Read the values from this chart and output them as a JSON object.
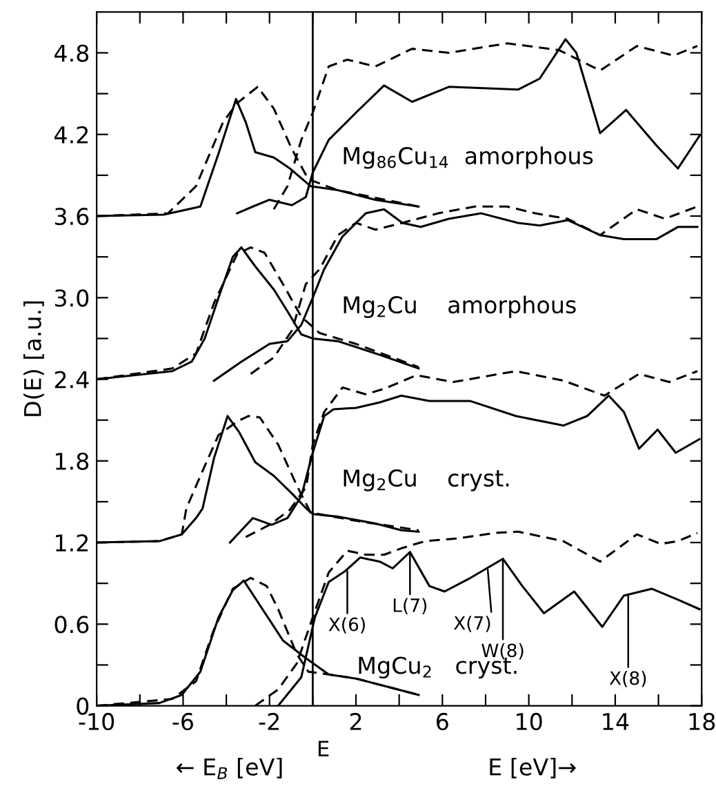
{
  "chart_data": {
    "type": "line",
    "ylabel": "D(E) [a.u.]",
    "xlabel": "E [eV]→",
    "xlim": [
      -10,
      18
    ],
    "ylim": [
      0,
      5.1
    ],
    "xticks": [
      -10,
      {
        "value": -8,
        "label": null
      },
      -6,
      {
        "value": -4,
        "label": null
      },
      -2,
      {
        "value": 0,
        "label": null
      },
      2,
      {
        "value": 4,
        "label": null
      },
      6,
      {
        "value": 8,
        "label": null
      },
      10,
      {
        "value": 12,
        "label": null
      },
      14,
      {
        "value": 16,
        "label": null
      },
      18
    ],
    "yticks": [
      0,
      {
        "value": 0.3,
        "label": null
      },
      0.6,
      {
        "value": 0.9,
        "label": null
      },
      1.2,
      {
        "value": 1.5,
        "label": null
      },
      1.8,
      {
        "value": 2.1,
        "label": null
      },
      2.4,
      {
        "value": 2.7,
        "label": null
      },
      {
        "value": 3.0,
        "label": "3.0"
      },
      {
        "value": 3.3,
        "label": null
      },
      3.6,
      {
        "value": 3.9,
        "label": null
      },
      4.2,
      {
        "value": 4.5,
        "label": null
      },
      4.8
    ],
    "grid": false,
    "legend": false,
    "marker": "none",
    "ref_lines": [
      {
        "axis": "x",
        "value": 0,
        "label": "E",
        "color": "#000000",
        "line_style": "solid"
      }
    ],
    "annotations": [
      "← E$_{B}$ [eV]",
      {
        "text": "X(6)",
        "x": 1.6,
        "y": 0.99
      },
      {
        "text": "L(7)",
        "x": 4.5,
        "y": 1.13
      },
      {
        "text": "X(7)",
        "x": 8.1,
        "y": 1.0
      },
      {
        "text": "W(8)",
        "x": 8.8,
        "y": 1.08
      },
      {
        "text": "X(8)",
        "x": 14.6,
        "y": 0.82
      }
    ],
    "series": [
      {
        "name": "Mg$_{86}$Cu$_{14}$  amorphous",
        "color": "#000000",
        "line_style": "solid",
        "x": [
          -3.5,
          -2.77,
          -2.0,
          -0.96,
          -0.32,
          0,
          0.74,
          2.0,
          3.3,
          4.6,
          6.3,
          9.5,
          10.5,
          11.7,
          12.2,
          13.3,
          14.5,
          15.9,
          16.9,
          17.9
        ],
        "values": [
          3.62,
          3.67,
          3.72,
          3.68,
          3.74,
          3.92,
          4.16,
          4.36,
          4.56,
          4.44,
          4.55,
          4.53,
          4.61,
          4.9,
          4.8,
          4.21,
          4.38,
          4.12,
          3.95,
          4.19
        ]
      },
      {
        "color": "#000000",
        "line_style": "dashed",
        "x": [
          -1.8,
          -1.17,
          -0.53,
          0,
          0.74,
          1.6,
          2.9,
          4.6,
          6.3,
          9.0,
          11.4,
          13.3,
          15.0,
          16.7,
          17.8
        ],
        "values": [
          3.65,
          3.82,
          4.16,
          4.36,
          4.7,
          4.75,
          4.7,
          4.83,
          4.8,
          4.87,
          4.82,
          4.67,
          4.85,
          4.78,
          4.85
        ]
      },
      {
        "color": "#000000",
        "line_style": "solid",
        "x": [
          -10,
          -6.9,
          -5.2,
          -4.36,
          -3.55,
          -3.1,
          -2.66,
          -1.8,
          -1.06,
          -0.1,
          1.17,
          2.9,
          4.9
        ],
        "values": [
          3.6,
          3.61,
          3.67,
          4.06,
          4.46,
          4.29,
          4.07,
          4.03,
          3.95,
          3.82,
          3.79,
          3.72,
          3.67
        ]
      },
      {
        "color": "#000000",
        "line_style": "dashed",
        "x": [
          -10,
          -6.7,
          -5.4,
          -4.15,
          -3.5,
          -2.55,
          -1.8,
          -0.96,
          -0.2,
          1.17,
          4.9
        ],
        "values": [
          3.6,
          3.62,
          3.82,
          4.29,
          4.43,
          4.55,
          4.39,
          4.09,
          3.87,
          3.79,
          3.67
        ]
      },
      {
        "name": "Mg$_{2}$Cu    amorphous",
        "color": "#000000",
        "line_style": "solid",
        "x": [
          -4.57,
          -3.3,
          -2.0,
          -1.17,
          -0.53,
          0,
          0.53,
          1.38,
          2.45,
          3.3,
          4.15,
          5.0,
          6.3,
          7.8,
          9.5,
          10.5,
          11.8,
          13.3,
          14.4,
          15.9,
          16.9,
          17.8
        ],
        "values": [
          2.39,
          2.53,
          2.66,
          2.68,
          2.8,
          3.0,
          3.21,
          3.45,
          3.62,
          3.65,
          3.55,
          3.52,
          3.58,
          3.62,
          3.55,
          3.53,
          3.57,
          3.46,
          3.43,
          3.43,
          3.52,
          3.52
        ]
      },
      {
        "color": "#000000",
        "line_style": "dashed",
        "x": [
          -2.87,
          -1.8,
          -0.96,
          -0.32,
          0.32,
          1.17,
          2.0,
          2.9,
          4.15,
          5.8,
          7.5,
          9.0,
          10.3,
          11.8,
          13.3,
          15.0,
          16.3,
          17.8
        ],
        "values": [
          2.44,
          2.56,
          2.76,
          3.1,
          3.21,
          3.46,
          3.55,
          3.5,
          3.55,
          3.62,
          3.67,
          3.67,
          3.62,
          3.58,
          3.46,
          3.65,
          3.58,
          3.67
        ]
      },
      {
        "color": "#000000",
        "line_style": "solid",
        "x": [
          -10,
          -6.5,
          -5.6,
          -5.0,
          -4.36,
          -3.7,
          -3.3,
          -2.66,
          -1.8,
          -1.17,
          -0.53,
          0,
          1.17,
          3.1,
          4.9
        ],
        "values": [
          2.4,
          2.46,
          2.53,
          2.7,
          3.0,
          3.3,
          3.37,
          3.23,
          3.06,
          2.9,
          2.73,
          2.7,
          2.68,
          2.58,
          2.48
        ]
      },
      {
        "color": "#000000",
        "line_style": "dashed",
        "x": [
          -10,
          -6.5,
          -5.4,
          -4.57,
          -3.5,
          -2.87,
          -2.23,
          -1.38,
          -0.53,
          0.32,
          2.0,
          4.9
        ],
        "values": [
          2.4,
          2.48,
          2.59,
          2.96,
          3.32,
          3.37,
          3.33,
          3.1,
          2.86,
          2.74,
          2.66,
          2.49
        ]
      },
      {
        "name": "Mg$_{2}$Cu    cryst.",
        "color": "#000000",
        "line_style": "solid",
        "x": [
          -3.83,
          -2.77,
          -1.9,
          -1.17,
          -0.53,
          0,
          0.53,
          0.96,
          2.0,
          3.1,
          4.1,
          5.4,
          7.3,
          9.4,
          11.6,
          12.7,
          13.7,
          14.4,
          15.1,
          15.96,
          16.8,
          17.9
        ],
        "values": [
          1.2,
          1.38,
          1.33,
          1.38,
          1.54,
          1.86,
          2.13,
          2.18,
          2.19,
          2.23,
          2.28,
          2.24,
          2.24,
          2.13,
          2.06,
          2.13,
          2.28,
          2.16,
          1.89,
          2.03,
          1.86,
          1.96
        ]
      },
      {
        "color": "#000000",
        "line_style": "dashed",
        "x": [
          -3.1,
          -2.0,
          -1.06,
          -0.3,
          0,
          0.53,
          1.38,
          2.45,
          3.3,
          4.8,
          6.5,
          9.4,
          11.6,
          13.5,
          15.1,
          16.5,
          17.8
        ],
        "values": [
          1.24,
          1.33,
          1.44,
          1.61,
          1.92,
          2.16,
          2.34,
          2.29,
          2.33,
          2.43,
          2.38,
          2.46,
          2.39,
          2.28,
          2.44,
          2.38,
          2.46
        ]
      },
      {
        "color": "#000000",
        "line_style": "solid",
        "x": [
          -10,
          -7.1,
          -6.06,
          -5.4,
          -5.1,
          -4.57,
          -3.94,
          -3.4,
          -2.66,
          -1.8,
          -0.96,
          -0.3,
          0,
          1.17,
          2.9,
          4.1,
          4.9
        ],
        "values": [
          1.2,
          1.21,
          1.26,
          1.38,
          1.45,
          1.82,
          2.13,
          2.01,
          1.79,
          1.69,
          1.56,
          1.45,
          1.41,
          1.39,
          1.34,
          1.29,
          1.28
        ]
      },
      {
        "color": "#000000",
        "line_style": "dashed",
        "x": [
          -10,
          -7.1,
          -6.06,
          -5.85,
          -5.2,
          -4.36,
          -3.5,
          -2.98,
          -2.45,
          -1.6,
          -0.74,
          -0.1,
          2.0,
          4.9
        ],
        "values": [
          1.2,
          1.21,
          1.26,
          1.45,
          1.69,
          1.99,
          2.09,
          2.13,
          2.12,
          1.92,
          1.62,
          1.42,
          1.36,
          1.29
        ]
      },
      {
        "name": "MgCu$_{2}$   cryst.",
        "color": "#000000",
        "line_style": "solid",
        "x": [
          -1.6,
          -0.53,
          0.1,
          0.74,
          1.5,
          2.2,
          3.1,
          3.7,
          4.5,
          5.4,
          6.1,
          7.3,
          8.8,
          9.7,
          10.7,
          12.1,
          13.4,
          14.4,
          15.7,
          16.9,
          17.9
        ],
        "values": [
          0,
          0.21,
          0.65,
          0.91,
          0.99,
          1.09,
          1.06,
          1.01,
          1.13,
          0.88,
          0.84,
          0.94,
          1.08,
          0.88,
          0.68,
          0.84,
          0.58,
          0.81,
          0.86,
          0.78,
          0.71
        ]
      },
      {
        "color": "#000000",
        "line_style": "dashed",
        "x": [
          -2.66,
          -1.6,
          -0.74,
          0,
          0.74,
          1.6,
          2.45,
          3.3,
          4.15,
          5.2,
          6.7,
          8.4,
          9.5,
          11.6,
          13.3,
          15.0,
          16.1,
          16.9,
          17.8
        ],
        "values": [
          0,
          0.12,
          0.31,
          0.65,
          0.98,
          1.14,
          1.11,
          1.11,
          1.16,
          1.21,
          1.23,
          1.27,
          1.28,
          1.21,
          1.06,
          1.26,
          1.19,
          1.21,
          1.27
        ]
      },
      {
        "color": "#000000",
        "line_style": "solid",
        "x": [
          -10,
          -7.1,
          -6.06,
          -5.2,
          -4.36,
          -3.7,
          -3.19,
          -1.38,
          -0.32,
          0.74,
          2.0,
          3.7,
          4.9
        ],
        "values": [
          0,
          0.02,
          0.08,
          0.25,
          0.65,
          0.85,
          0.92,
          0.48,
          0.35,
          0.23,
          0.2,
          0.13,
          0.08
        ]
      },
      {
        "color": "#000000",
        "line_style": "dashed",
        "x": [
          -10,
          -6.5,
          -5.4,
          -4.6,
          -3.7,
          -2.87,
          -2.13,
          -1.6,
          -0.74,
          -0.2,
          0.74,
          2.0,
          4.9
        ],
        "values": [
          0,
          0.05,
          0.18,
          0.55,
          0.86,
          0.94,
          0.88,
          0.71,
          0.38,
          0.25,
          0.23,
          0.2,
          0.08
        ]
      }
    ]
  }
}
